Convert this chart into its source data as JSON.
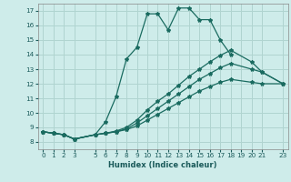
{
  "xlabel": "Humidex (Indice chaleur)",
  "bg_color": "#ceecea",
  "grid_color": "#b0d4d0",
  "line_color": "#1a6b60",
  "xlim": [
    -0.5,
    23.5
  ],
  "ylim": [
    7.5,
    17.5
  ],
  "xticks": [
    0,
    1,
    2,
    3,
    5,
    6,
    7,
    8,
    9,
    10,
    11,
    12,
    13,
    14,
    15,
    16,
    17,
    18,
    19,
    20,
    21,
    23
  ],
  "yticks": [
    8,
    9,
    10,
    11,
    12,
    13,
    14,
    15,
    16,
    17
  ],
  "series1_x": [
    0,
    1,
    2,
    3,
    5,
    6,
    7,
    8,
    9,
    10,
    11,
    12,
    13,
    14,
    15,
    16,
    17,
    18
  ],
  "series1_y": [
    8.7,
    8.6,
    8.5,
    8.2,
    8.5,
    9.4,
    11.1,
    13.7,
    14.5,
    16.8,
    16.8,
    15.7,
    17.2,
    17.2,
    16.4,
    16.4,
    15.0,
    14.0
  ],
  "series2_x": [
    0,
    1,
    2,
    3,
    5,
    6,
    7,
    8,
    9,
    10,
    11,
    12,
    13,
    14,
    15,
    16,
    17,
    18,
    20,
    21,
    23
  ],
  "series2_y": [
    8.7,
    8.6,
    8.5,
    8.2,
    8.5,
    8.6,
    8.7,
    8.9,
    9.3,
    9.8,
    10.3,
    10.8,
    11.3,
    11.8,
    12.3,
    12.7,
    13.1,
    13.4,
    13.0,
    12.8,
    12.0
  ],
  "series3_x": [
    0,
    1,
    2,
    3,
    5,
    6,
    7,
    8,
    9,
    10,
    11,
    12,
    13,
    14,
    15,
    16,
    17,
    18,
    20,
    21,
    23
  ],
  "series3_y": [
    8.7,
    8.6,
    8.5,
    8.2,
    8.5,
    8.6,
    8.75,
    9.0,
    9.5,
    10.2,
    10.8,
    11.3,
    11.9,
    12.5,
    13.0,
    13.5,
    13.95,
    14.3,
    13.5,
    12.8,
    12.0
  ],
  "series4_x": [
    0,
    1,
    2,
    3,
    5,
    6,
    7,
    8,
    9,
    10,
    11,
    12,
    13,
    14,
    15,
    16,
    17,
    18,
    20,
    21,
    23
  ],
  "series4_y": [
    8.7,
    8.6,
    8.5,
    8.2,
    8.5,
    8.6,
    8.7,
    8.85,
    9.1,
    9.5,
    9.9,
    10.3,
    10.7,
    11.1,
    11.5,
    11.8,
    12.1,
    12.3,
    12.1,
    12.0,
    12.0
  ]
}
